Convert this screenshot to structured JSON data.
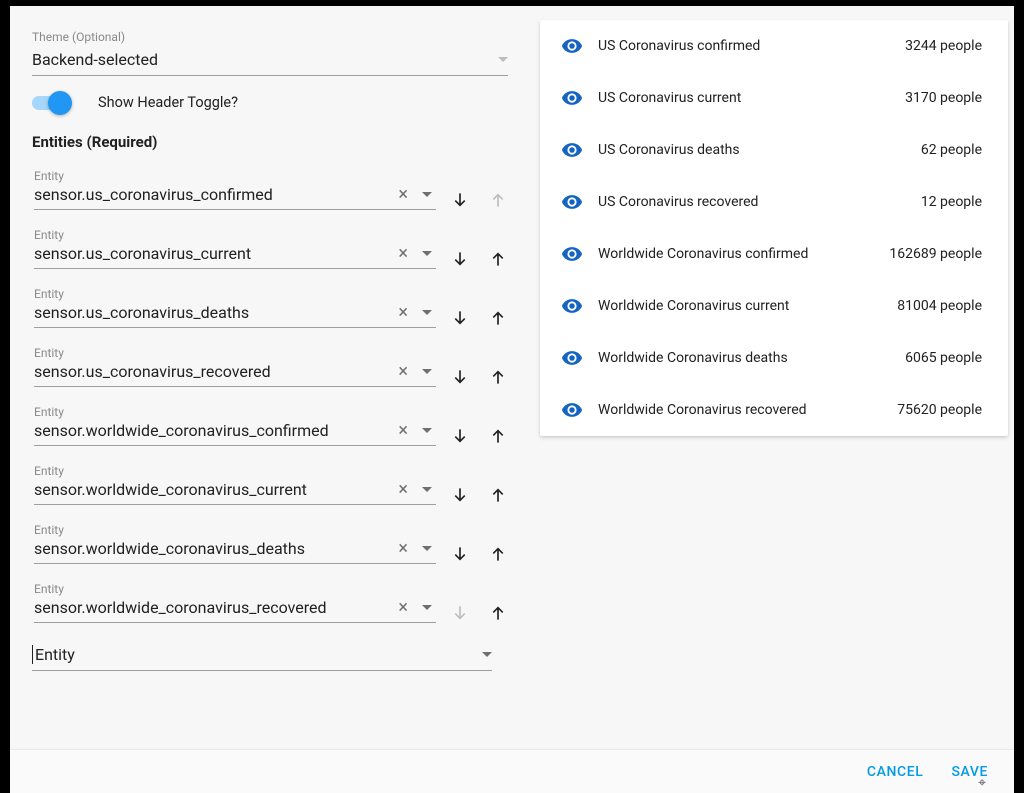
{
  "theme": {
    "label": "Theme (Optional)",
    "value": "Backend-selected"
  },
  "toggle": {
    "label": "Show Header Toggle?",
    "on": true
  },
  "entities_section_title": "Entities (Required)",
  "entity_field_label": "Entity",
  "new_entity_placeholder": "Entity",
  "entities": [
    {
      "value": "sensor.us_coronavirus_confirmed",
      "up_disabled": true,
      "down_disabled": false
    },
    {
      "value": "sensor.us_coronavirus_current",
      "up_disabled": false,
      "down_disabled": false
    },
    {
      "value": "sensor.us_coronavirus_deaths",
      "up_disabled": false,
      "down_disabled": false
    },
    {
      "value": "sensor.us_coronavirus_recovered",
      "up_disabled": false,
      "down_disabled": false
    },
    {
      "value": "sensor.worldwide_coronavirus_confirmed",
      "up_disabled": false,
      "down_disabled": false
    },
    {
      "value": "sensor.worldwide_coronavirus_current",
      "up_disabled": false,
      "down_disabled": false
    },
    {
      "value": "sensor.worldwide_coronavirus_deaths",
      "up_disabled": false,
      "down_disabled": false
    },
    {
      "value": "sensor.worldwide_coronavirus_recovered",
      "up_disabled": false,
      "down_disabled": true
    }
  ],
  "preview": [
    {
      "name": "US Coronavirus confirmed",
      "value": "3244 people"
    },
    {
      "name": "US Coronavirus current",
      "value": "3170 people"
    },
    {
      "name": "US Coronavirus deaths",
      "value": "62 people"
    },
    {
      "name": "US Coronavirus recovered",
      "value": "12 people"
    },
    {
      "name": "Worldwide Coronavirus confirmed",
      "value": "162689 people"
    },
    {
      "name": "Worldwide Coronavirus current",
      "value": "81004 people"
    },
    {
      "name": "Worldwide Coronavirus deaths",
      "value": "6065 people"
    },
    {
      "name": "Worldwide Coronavirus recovered",
      "value": "75620 people"
    }
  ],
  "buttons": {
    "cancel": "Cancel",
    "save": "Save"
  },
  "colors": {
    "accent": "#2196f3",
    "accent_light": "#a4d7fb",
    "icon": "#1565c0",
    "text_primary": "#212121",
    "text_secondary": "#8a8a8a",
    "divider": "#9e9e9e",
    "dialog_bg": "#f7f7f7",
    "card_bg": "#ffffff",
    "link": "#039be5"
  }
}
